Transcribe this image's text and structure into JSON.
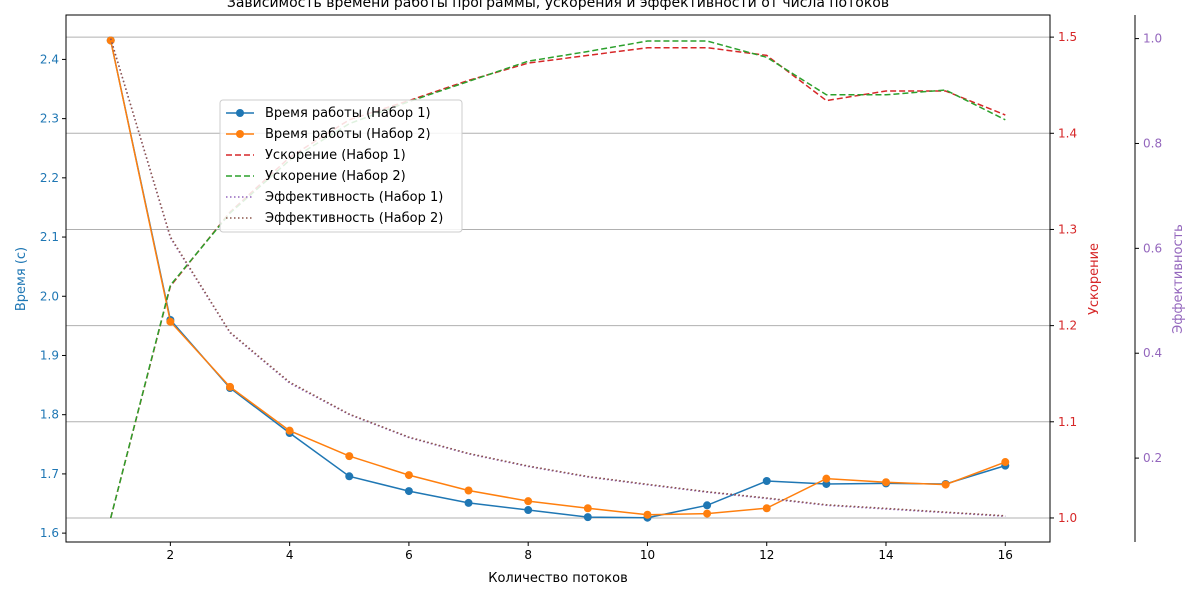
{
  "chart_data": {
    "type": "line",
    "title": "Зависимость времени работы программы, ускорения и эффективности от числа потоков",
    "xlabel": "Количество потоков",
    "x": [
      1,
      2,
      3,
      4,
      5,
      6,
      7,
      8,
      9,
      10,
      11,
      12,
      13,
      14,
      15,
      16
    ],
    "x_ticks": [
      "2",
      "4",
      "6",
      "8",
      "10",
      "12",
      "14",
      "16"
    ],
    "x_tick_values": [
      2,
      4,
      6,
      8,
      10,
      12,
      14,
      16
    ],
    "xlim": [
      0.25,
      16.75
    ],
    "grid": "horizontal (right axis)",
    "legend_position": "upper-left",
    "axes": {
      "left": {
        "label": "Время (с)",
        "color": "#1f77b4",
        "ylim": [
          1.585,
          2.475
        ],
        "ticks": [
          "1.6",
          "1.7",
          "1.8",
          "1.9",
          "2.0",
          "2.1",
          "2.2",
          "2.3",
          "2.4"
        ],
        "tick_values": [
          1.6,
          1.7,
          1.8,
          1.9,
          2.0,
          2.1,
          2.2,
          2.3,
          2.4
        ]
      },
      "right": {
        "label": "Ускорение",
        "color": "#d62728",
        "ylim": [
          0.975,
          1.523
        ],
        "ticks": [
          "1.0",
          "1.1",
          "1.2",
          "1.3",
          "1.4",
          "1.5"
        ],
        "tick_values": [
          1.0,
          1.1,
          1.2,
          1.3,
          1.4,
          1.5
        ]
      },
      "right2": {
        "label": "Эффективность",
        "color": "#9467bd",
        "ylim": [
          0.04,
          1.045
        ],
        "ticks": [
          "0.2",
          "0.4",
          "0.6",
          "0.8",
          "1.0"
        ],
        "tick_values": [
          0.2,
          0.4,
          0.6,
          0.8,
          1.0
        ]
      }
    },
    "series": [
      {
        "name": "Время работы (Набор 1)",
        "axis": "left",
        "color": "#1f77b4",
        "style": "solid-marker",
        "values": [
          2.432,
          1.96,
          1.845,
          1.769,
          1.696,
          1.671,
          1.651,
          1.639,
          1.627,
          1.626,
          1.647,
          1.688,
          1.683,
          1.684,
          1.683,
          1.714
        ]
      },
      {
        "name": "Время работы (Набор 2)",
        "axis": "left",
        "color": "#ff7f0e",
        "style": "solid-marker",
        "values": [
          2.432,
          1.957,
          1.847,
          1.773,
          1.73,
          1.698,
          1.672,
          1.654,
          1.642,
          1.631,
          1.633,
          1.642,
          1.692,
          1.686,
          1.682,
          1.72
        ]
      },
      {
        "name": "Ускорение (Набор 1)",
        "axis": "right",
        "color": "#d62728",
        "style": "dashed",
        "values": [
          1.0,
          1.241,
          1.318,
          1.375,
          1.414,
          1.434,
          1.455,
          1.473,
          1.481,
          1.489,
          1.489,
          1.481,
          1.434,
          1.444,
          1.444,
          1.419
        ]
      },
      {
        "name": "Ускорение (Набор 2)",
        "axis": "right",
        "color": "#2ca02c",
        "style": "dashed",
        "values": [
          1.0,
          1.242,
          1.317,
          1.372,
          1.41,
          1.433,
          1.454,
          1.475,
          1.485,
          1.496,
          1.496,
          1.479,
          1.44,
          1.44,
          1.445,
          1.414
        ]
      },
      {
        "name": "Эффективность (Набор 1)",
        "axis": "right2",
        "color": "#9467bd",
        "style": "dotted",
        "values": [
          1.0,
          0.62,
          0.439,
          0.343,
          0.283,
          0.239,
          0.208,
          0.184,
          0.164,
          0.149,
          0.135,
          0.123,
          0.11,
          0.103,
          0.096,
          0.089
        ]
      },
      {
        "name": "Эффективность (Набор 2)",
        "axis": "right2",
        "color": "#8c564b",
        "style": "dotted",
        "values": [
          1.0,
          0.622,
          0.44,
          0.345,
          0.284,
          0.24,
          0.209,
          0.185,
          0.165,
          0.15,
          0.136,
          0.124,
          0.111,
          0.104,
          0.097,
          0.09
        ]
      }
    ]
  }
}
